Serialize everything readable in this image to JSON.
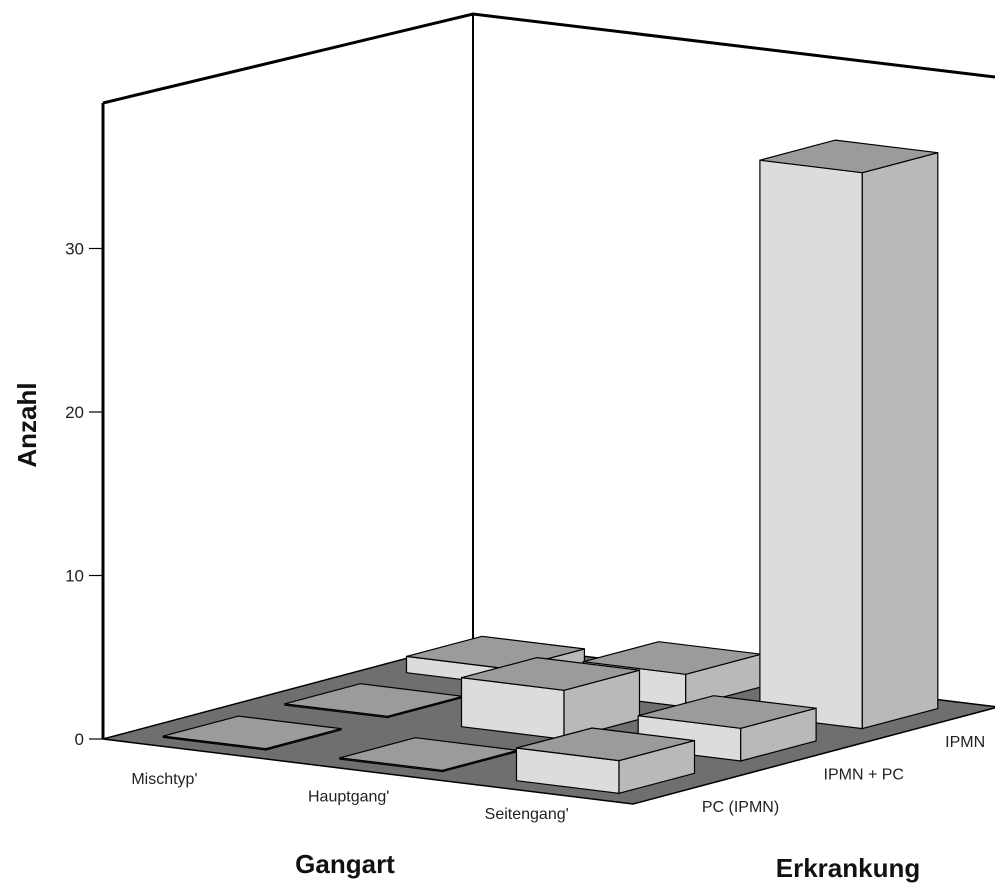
{
  "chart_data": {
    "type": "bar",
    "subtype": "3d-bar",
    "title": "",
    "zlabel": "Anzahl",
    "xlabel": "Gangart",
    "ylabel": "Erkrankung",
    "x_categories": [
      "Mischtyp'",
      "Hauptgang'",
      "Seitengang'"
    ],
    "y_categories": [
      "PC (IPMN)",
      "IPMN + PC",
      "IPMN"
    ],
    "zlim": [
      0,
      37
    ],
    "zticks": [
      0,
      10,
      20,
      30
    ],
    "values": [
      {
        "x": "Mischtyp'",
        "y": "PC (IPMN)",
        "value": 0
      },
      {
        "x": "Mischtyp'",
        "y": "IPMN + PC",
        "value": 0
      },
      {
        "x": "Mischtyp'",
        "y": "IPMN",
        "value": 1
      },
      {
        "x": "Hauptgang'",
        "y": "PC (IPMN)",
        "value": 0
      },
      {
        "x": "Hauptgang'",
        "y": "IPMN + PC",
        "value": 3
      },
      {
        "x": "Hauptgang'",
        "y": "IPMN",
        "value": 2
      },
      {
        "x": "Seitengang'",
        "y": "PC (IPMN)",
        "value": 2
      },
      {
        "x": "Seitengang'",
        "y": "IPMN + PC",
        "value": 2
      },
      {
        "x": "Seitengang'",
        "y": "IPMN",
        "value": 34
      }
    ],
    "colors": {
      "floor": "#6f6f6f",
      "bar_front": "#dcdcdc",
      "bar_side": "#b9b9b9",
      "bar_top": "#9b9b9b",
      "frame": "#000000"
    }
  }
}
